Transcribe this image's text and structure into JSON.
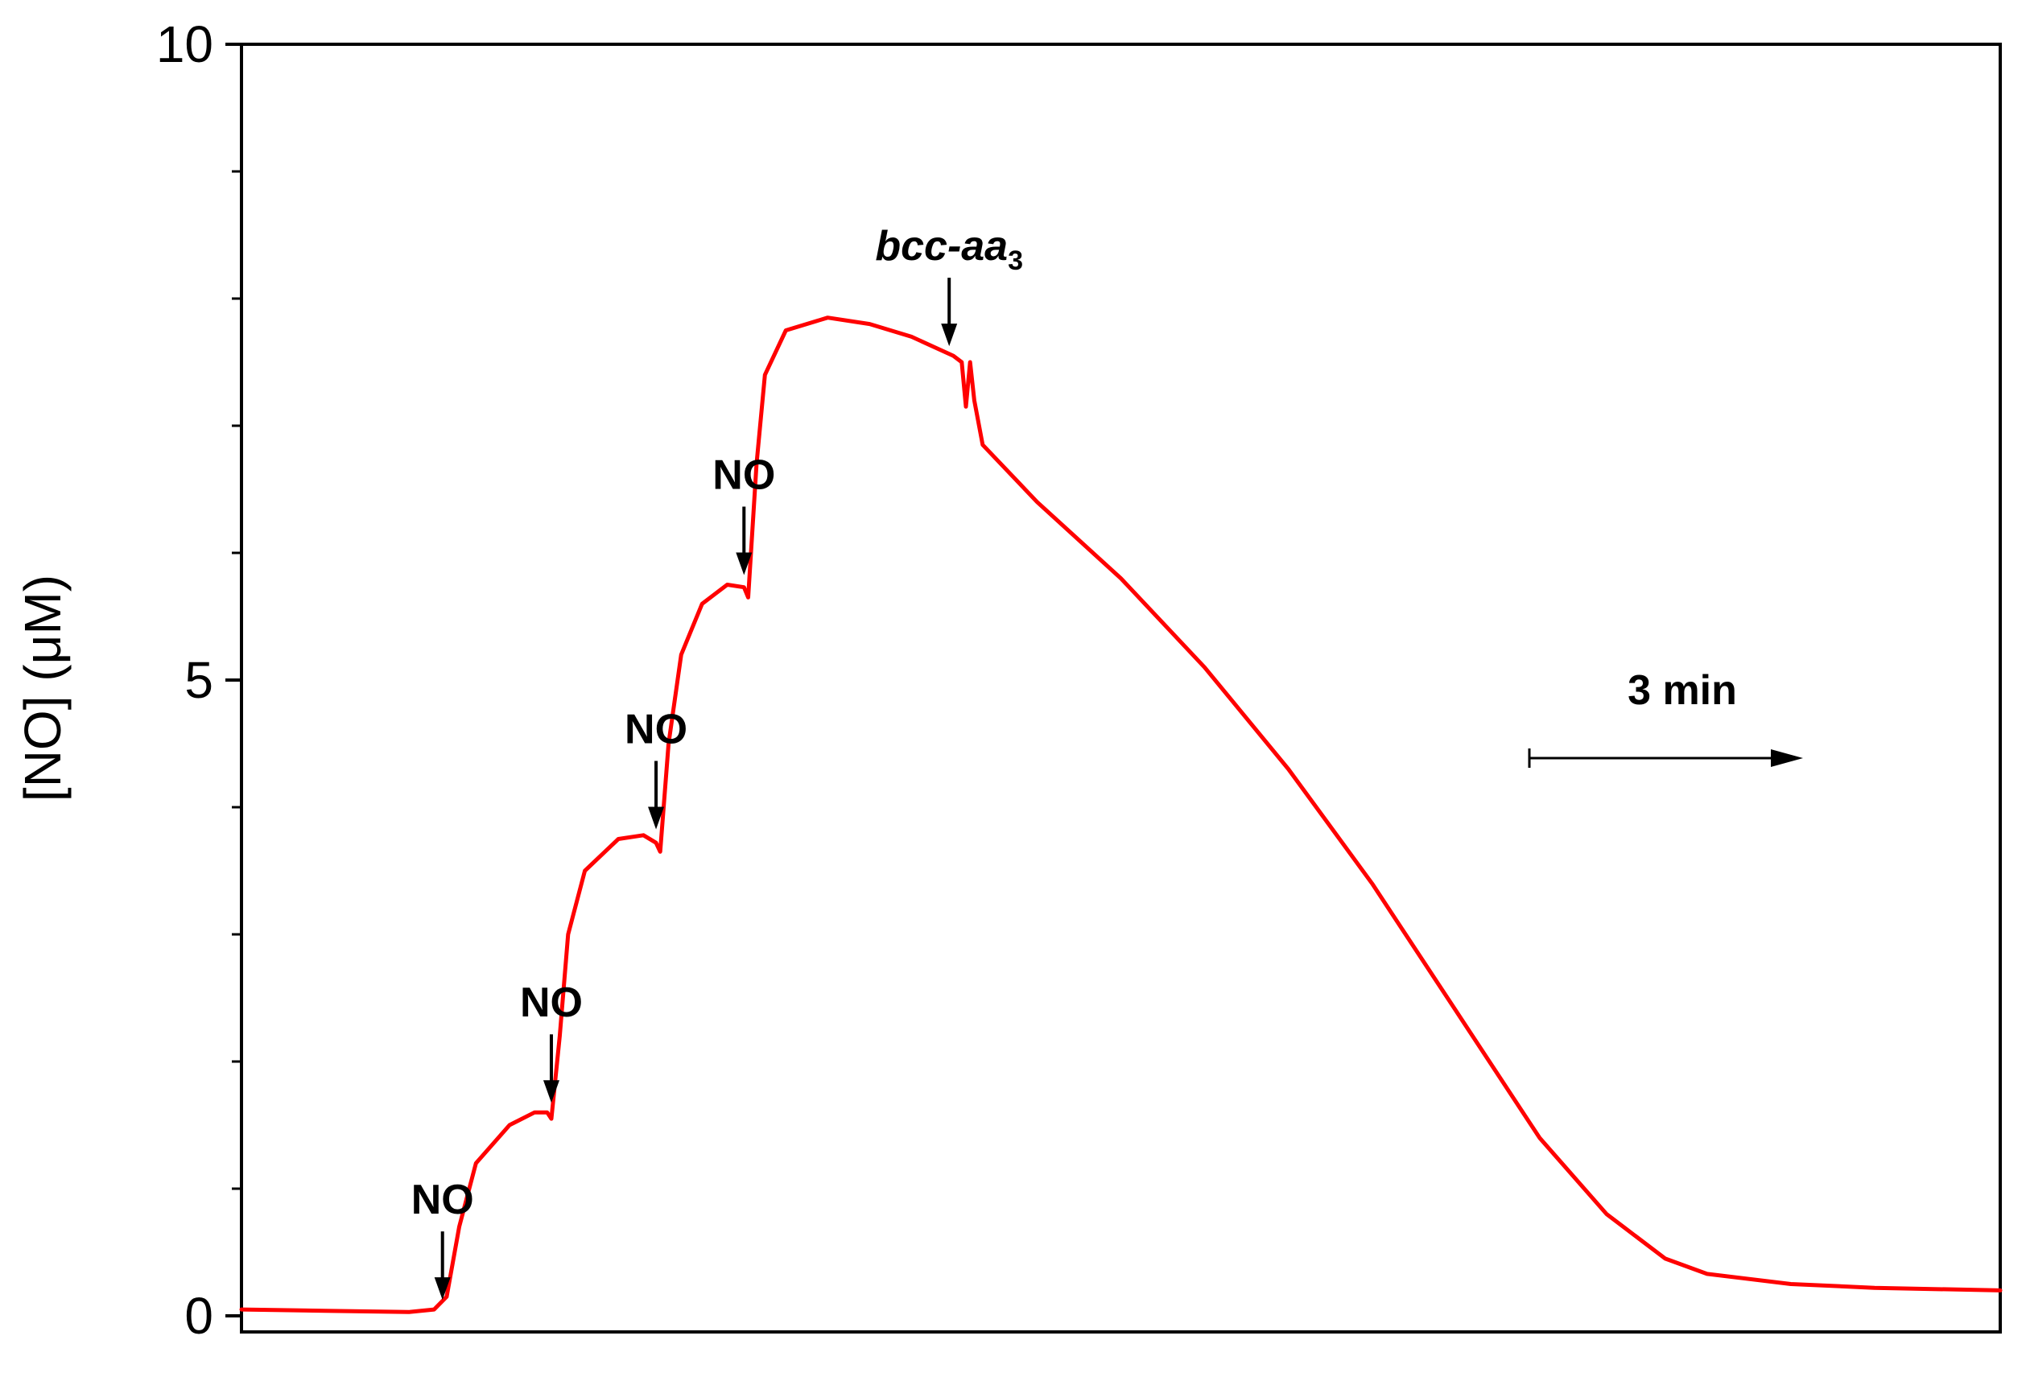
{
  "chart_data": {
    "type": "line",
    "title": "",
    "xlabel": "",
    "ylabel": "[NO] (μM)",
    "ylim": [
      0,
      10
    ],
    "xlim": [
      0,
      21
    ],
    "y_ticks": [
      0,
      5,
      10
    ],
    "y_tick_labels": [
      "0",
      "5",
      "10"
    ],
    "y_minor_ticks": [
      1,
      2,
      3,
      4,
      6,
      7,
      8,
      9
    ],
    "x_tick_labels_shown": false,
    "grid": false,
    "legend": "none",
    "line_color": "#ff0000",
    "series": [
      {
        "points": [
          [
            0,
            0.05
          ],
          [
            1,
            0.04
          ],
          [
            2,
            0.03
          ],
          [
            2.3,
            0.05
          ],
          [
            2.45,
            0.15
          ],
          [
            2.6,
            0.7
          ],
          [
            2.8,
            1.2
          ],
          [
            3.2,
            1.5
          ],
          [
            3.5,
            1.6
          ],
          [
            3.65,
            1.6
          ],
          [
            3.7,
            1.55
          ],
          [
            3.8,
            2.2
          ],
          [
            3.9,
            3.0
          ],
          [
            4.1,
            3.5
          ],
          [
            4.5,
            3.75
          ],
          [
            4.8,
            3.78
          ],
          [
            4.95,
            3.72
          ],
          [
            5.0,
            3.65
          ],
          [
            5.1,
            4.5
          ],
          [
            5.25,
            5.2
          ],
          [
            5.5,
            5.6
          ],
          [
            5.8,
            5.75
          ],
          [
            6.0,
            5.73
          ],
          [
            6.05,
            5.65
          ],
          [
            6.15,
            6.7
          ],
          [
            6.25,
            7.4
          ],
          [
            6.5,
            7.75
          ],
          [
            7.0,
            7.85
          ],
          [
            7.5,
            7.8
          ],
          [
            8.0,
            7.7
          ],
          [
            8.5,
            7.55
          ],
          [
            8.6,
            7.5
          ],
          [
            8.65,
            7.15
          ],
          [
            8.7,
            7.5
          ],
          [
            8.75,
            7.2
          ],
          [
            8.85,
            6.85
          ],
          [
            9.5,
            6.4
          ],
          [
            10.5,
            5.8
          ],
          [
            11.5,
            5.1
          ],
          [
            12.5,
            4.3
          ],
          [
            13.5,
            3.4
          ],
          [
            14.5,
            2.4
          ],
          [
            15.5,
            1.4
          ],
          [
            16.3,
            0.8
          ],
          [
            17.0,
            0.45
          ],
          [
            17.5,
            0.33
          ],
          [
            18.5,
            0.25
          ],
          [
            19.5,
            0.22
          ],
          [
            21.0,
            0.2
          ]
        ]
      }
    ],
    "annotations": [
      {
        "text": "NO",
        "x": 2.4,
        "y": 0.05,
        "italic": false
      },
      {
        "text": "NO",
        "x": 3.7,
        "y": 1.6,
        "italic": false
      },
      {
        "text": "NO",
        "x": 4.95,
        "y": 3.75,
        "italic": false
      },
      {
        "text": "NO",
        "x": 6.0,
        "y": 5.75,
        "italic": false
      },
      {
        "text": "bcc-aa",
        "subscript": "3",
        "x": 8.45,
        "y": 7.55,
        "italic": true
      }
    ],
    "scale_bar": {
      "label": "3 min",
      "minutes": 3
    }
  }
}
